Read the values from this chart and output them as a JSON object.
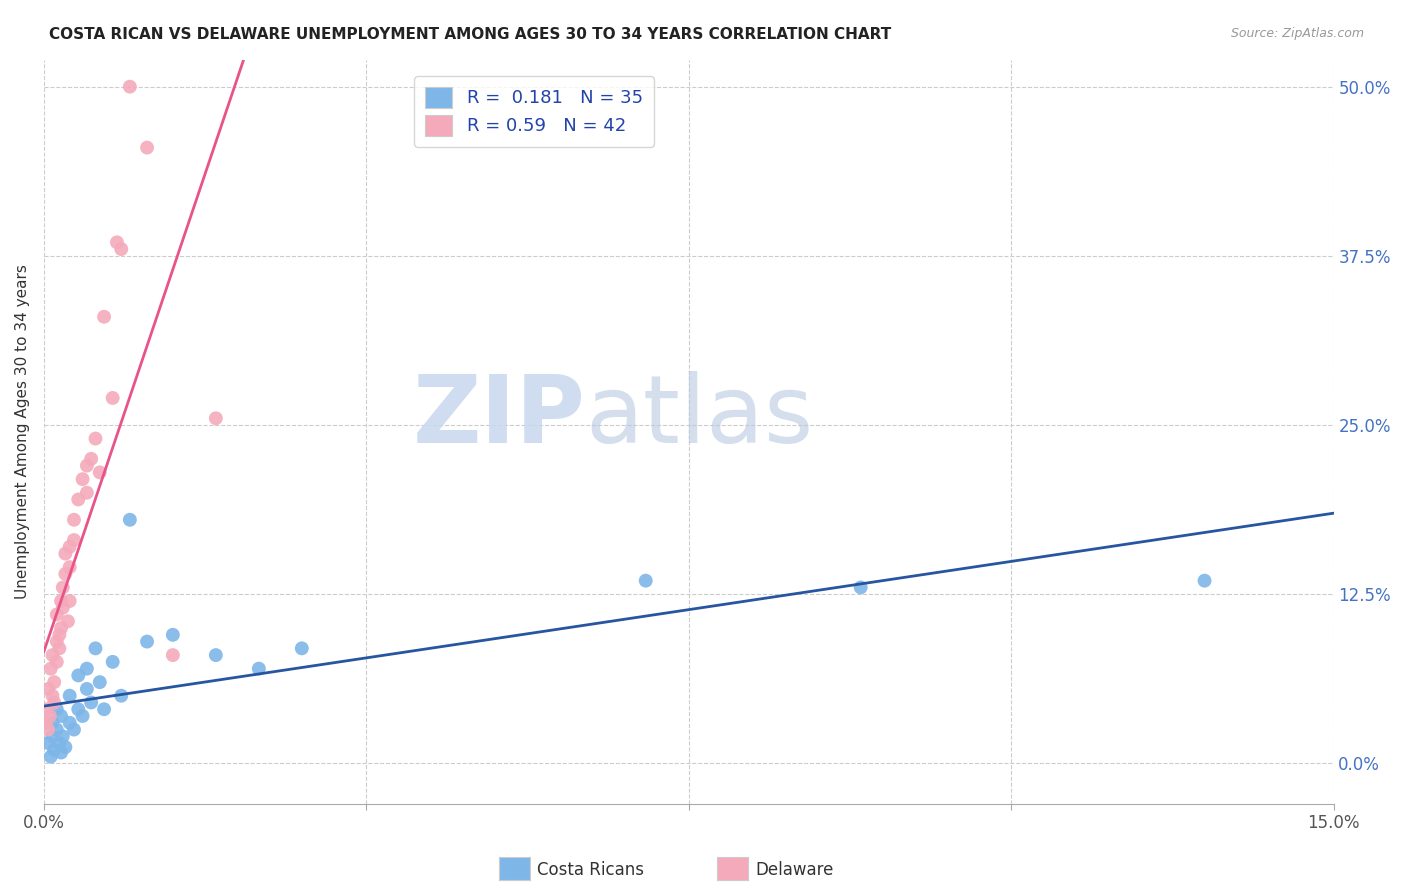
{
  "title": "COSTA RICAN VS DELAWARE UNEMPLOYMENT AMONG AGES 30 TO 34 YEARS CORRELATION CHART",
  "source": "Source: ZipAtlas.com",
  "ylabel": "Unemployment Among Ages 30 to 34 years",
  "ytick_labels": [
    "0.0%",
    "12.5%",
    "25.0%",
    "37.5%",
    "50.0%"
  ],
  "ytick_values": [
    0.0,
    12.5,
    25.0,
    37.5,
    50.0
  ],
  "xlim": [
    0.0,
    15.0
  ],
  "ylim": [
    -3.0,
    52.0
  ],
  "costa_ricans_color": "#7EB6E8",
  "delaware_color": "#F4AABB",
  "costa_ricans_line_color": "#2855A0",
  "delaware_line_color": "#E8548A",
  "R_costa": 0.181,
  "N_costa": 35,
  "R_delaware": 0.59,
  "N_delaware": 42,
  "watermark_zip": "ZIP",
  "watermark_atlas": "atlas",
  "costa_ricans_x": [
    0.05,
    0.08,
    0.1,
    0.1,
    0.12,
    0.15,
    0.15,
    0.18,
    0.2,
    0.2,
    0.22,
    0.25,
    0.3,
    0.3,
    0.35,
    0.4,
    0.4,
    0.45,
    0.5,
    0.5,
    0.55,
    0.6,
    0.65,
    0.7,
    0.8,
    0.9,
    1.0,
    1.2,
    1.5,
    2.0,
    2.5,
    3.0,
    7.0,
    9.5,
    13.5
  ],
  "costa_ricans_y": [
    1.5,
    0.5,
    2.0,
    3.0,
    1.0,
    2.5,
    4.0,
    1.5,
    0.8,
    3.5,
    2.0,
    1.2,
    3.0,
    5.0,
    2.5,
    4.0,
    6.5,
    3.5,
    5.5,
    7.0,
    4.5,
    8.5,
    6.0,
    4.0,
    7.5,
    5.0,
    18.0,
    9.0,
    9.5,
    8.0,
    7.0,
    8.5,
    13.5,
    13.0,
    13.5
  ],
  "delaware_x": [
    0.02,
    0.03,
    0.05,
    0.05,
    0.07,
    0.08,
    0.1,
    0.1,
    0.12,
    0.12,
    0.15,
    0.15,
    0.15,
    0.18,
    0.18,
    0.2,
    0.2,
    0.22,
    0.22,
    0.25,
    0.25,
    0.28,
    0.3,
    0.3,
    0.3,
    0.35,
    0.35,
    0.4,
    0.45,
    0.5,
    0.5,
    0.55,
    0.6,
    0.65,
    0.7,
    0.8,
    0.85,
    0.9,
    1.0,
    1.2,
    1.5,
    2.0
  ],
  "delaware_y": [
    3.0,
    4.0,
    2.5,
    5.5,
    3.5,
    7.0,
    5.0,
    8.0,
    6.0,
    4.5,
    9.0,
    7.5,
    11.0,
    9.5,
    8.5,
    10.0,
    12.0,
    11.5,
    13.0,
    14.0,
    15.5,
    10.5,
    14.5,
    16.0,
    12.0,
    16.5,
    18.0,
    19.5,
    21.0,
    20.0,
    22.0,
    22.5,
    24.0,
    21.5,
    33.0,
    27.0,
    38.5,
    38.0,
    50.0,
    45.5,
    8.0,
    25.5
  ]
}
